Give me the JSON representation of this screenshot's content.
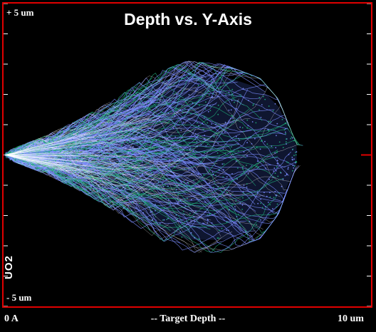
{
  "chart_data": {
    "type": "scatter",
    "title": "Depth vs. Y-Axis",
    "xlabel": "-- Target Depth --",
    "x_tick_labels": [
      "0 A",
      "10 um"
    ],
    "y_tick_labels": [
      "+ 5 um",
      "- 5 um"
    ],
    "xlim": [
      0,
      10
    ],
    "ylim": [
      -5,
      5
    ],
    "material_label": "UO2",
    "series": [
      {
        "values_description_none": null,
        "x": [
          0.0,
          1.0,
          2.0,
          3.0,
          4.0,
          5.0,
          6.0,
          7.0,
          7.5,
          8.0
        ],
        "y_upper": [
          0.1,
          0.5,
          1.0,
          1.6,
          2.3,
          2.7,
          2.6,
          2.2,
          1.6,
          0.3
        ],
        "y_lower": [
          -0.1,
          -0.5,
          -1.0,
          -1.6,
          -2.3,
          -2.8,
          -2.8,
          -2.4,
          -1.7,
          -0.3
        ]
      }
    ],
    "colors": {
      "frame": "#e00000",
      "primary": "#7a8cff",
      "secondary": "#1fae7a",
      "core": "#ffffff",
      "background": "#000000"
    }
  }
}
